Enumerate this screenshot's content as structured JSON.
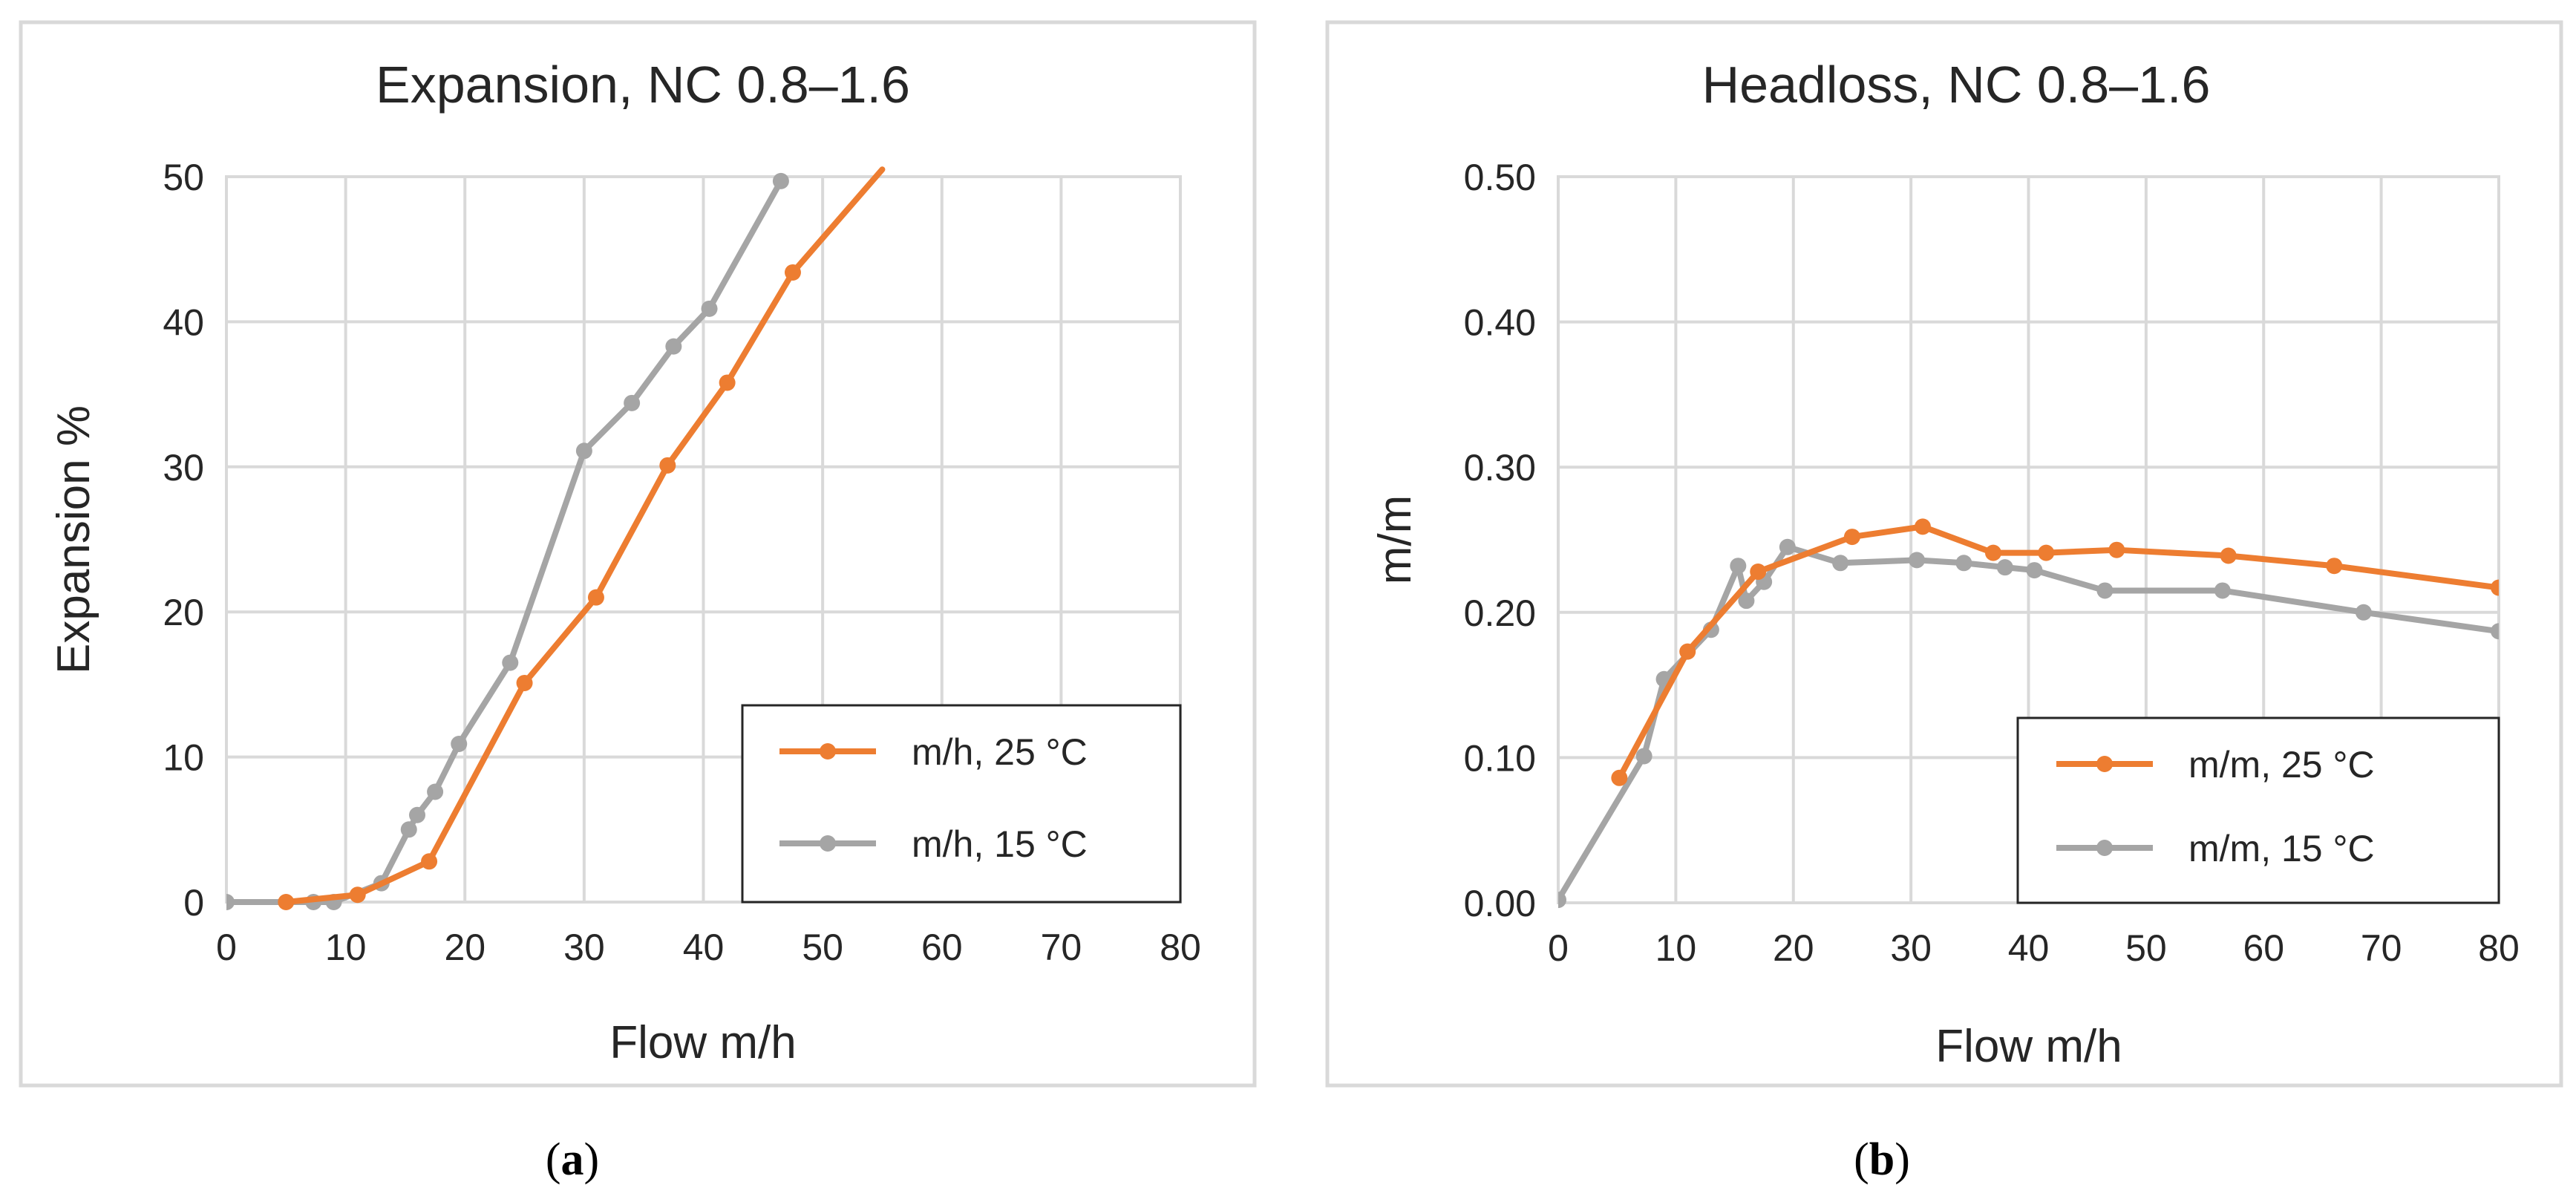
{
  "figure": {
    "panels": [
      {
        "caption_open": "(",
        "caption_letter": "a",
        "caption_close": ")"
      },
      {
        "caption_open": "(",
        "caption_letter": "b",
        "caption_close": ")"
      }
    ]
  },
  "colors": {
    "orange": "#ed7d31",
    "gray": "#a5a5a5",
    "grid": "#d9d9d9",
    "text": "#262626"
  },
  "chart_data": [
    {
      "type": "line",
      "title": "Expansion, NC 0.8–1.6",
      "xlabel": "Flow m/h",
      "ylabel": "Expansion %",
      "xlim": [
        0,
        80
      ],
      "ylim": [
        0,
        50
      ],
      "xticks": [
        0,
        10,
        20,
        30,
        40,
        50,
        60,
        70,
        80
      ],
      "yticks": [
        0,
        10,
        20,
        30,
        40,
        50
      ],
      "ytick_decimals": 0,
      "grid": true,
      "legend_position": "bottom-right",
      "series": [
        {
          "name": "m/h, 25 °C",
          "color": "#ed7d31",
          "points": [
            [
              5,
              0
            ],
            [
              11,
              0.5
            ],
            [
              17,
              2.8
            ],
            [
              25,
              15.1
            ],
            [
              31,
              21
            ],
            [
              37,
              30.1
            ],
            [
              42,
              35.8
            ],
            [
              47.5,
              43.4
            ],
            [
              55,
              50.5
            ]
          ]
        },
        {
          "name": "m/h, 15 °C",
          "color": "#a5a5a5",
          "points": [
            [
              0,
              0
            ],
            [
              7.3,
              0
            ],
            [
              9,
              0
            ],
            [
              13,
              1.3
            ],
            [
              15.3,
              5
            ],
            [
              16,
              6
            ],
            [
              17.5,
              7.6
            ],
            [
              19.5,
              10.9
            ],
            [
              23.8,
              16.5
            ],
            [
              30,
              31.1
            ],
            [
              34,
              34.4
            ],
            [
              37.5,
              38.3
            ],
            [
              40.5,
              40.9
            ],
            [
              46.5,
              49.7
            ]
          ]
        }
      ]
    },
    {
      "type": "line",
      "title": "Headloss, NC 0.8–1.6",
      "xlabel": "Flow m/h",
      "ylabel": "m/m",
      "xlim": [
        0,
        80
      ],
      "ylim": [
        0,
        0.5
      ],
      "xticks": [
        0,
        10,
        20,
        30,
        40,
        50,
        60,
        70,
        80
      ],
      "yticks": [
        0,
        0.1,
        0.2,
        0.3,
        0.4,
        0.5
      ],
      "ytick_decimals": 2,
      "grid": true,
      "legend_position": "bottom-right",
      "series": [
        {
          "name": "m/m, 25 °C",
          "color": "#ed7d31",
          "points": [
            [
              5.2,
              0.086
            ],
            [
              11,
              0.173
            ],
            [
              17,
              0.228
            ],
            [
              25,
              0.252
            ],
            [
              31,
              0.259
            ],
            [
              37,
              0.241
            ],
            [
              41.5,
              0.241
            ],
            [
              47.5,
              0.243
            ],
            [
              57,
              0.239
            ],
            [
              66,
              0.232
            ],
            [
              80,
              0.217
            ]
          ]
        },
        {
          "name": "m/m, 15 °C",
          "color": "#a5a5a5",
          "points": [
            [
              0,
              0.002
            ],
            [
              7.3,
              0.101
            ],
            [
              9,
              0.154
            ],
            [
              13,
              0.188
            ],
            [
              15.3,
              0.232
            ],
            [
              16,
              0.208
            ],
            [
              17.5,
              0.221
            ],
            [
              19.5,
              0.245
            ],
            [
              24,
              0.234
            ],
            [
              30.5,
              0.236
            ],
            [
              34.5,
              0.234
            ],
            [
              38,
              0.231
            ],
            [
              40.5,
              0.229
            ],
            [
              46.5,
              0.215
            ],
            [
              56.5,
              0.215
            ],
            [
              68.5,
              0.2
            ],
            [
              80,
              0.187
            ]
          ]
        }
      ]
    }
  ]
}
